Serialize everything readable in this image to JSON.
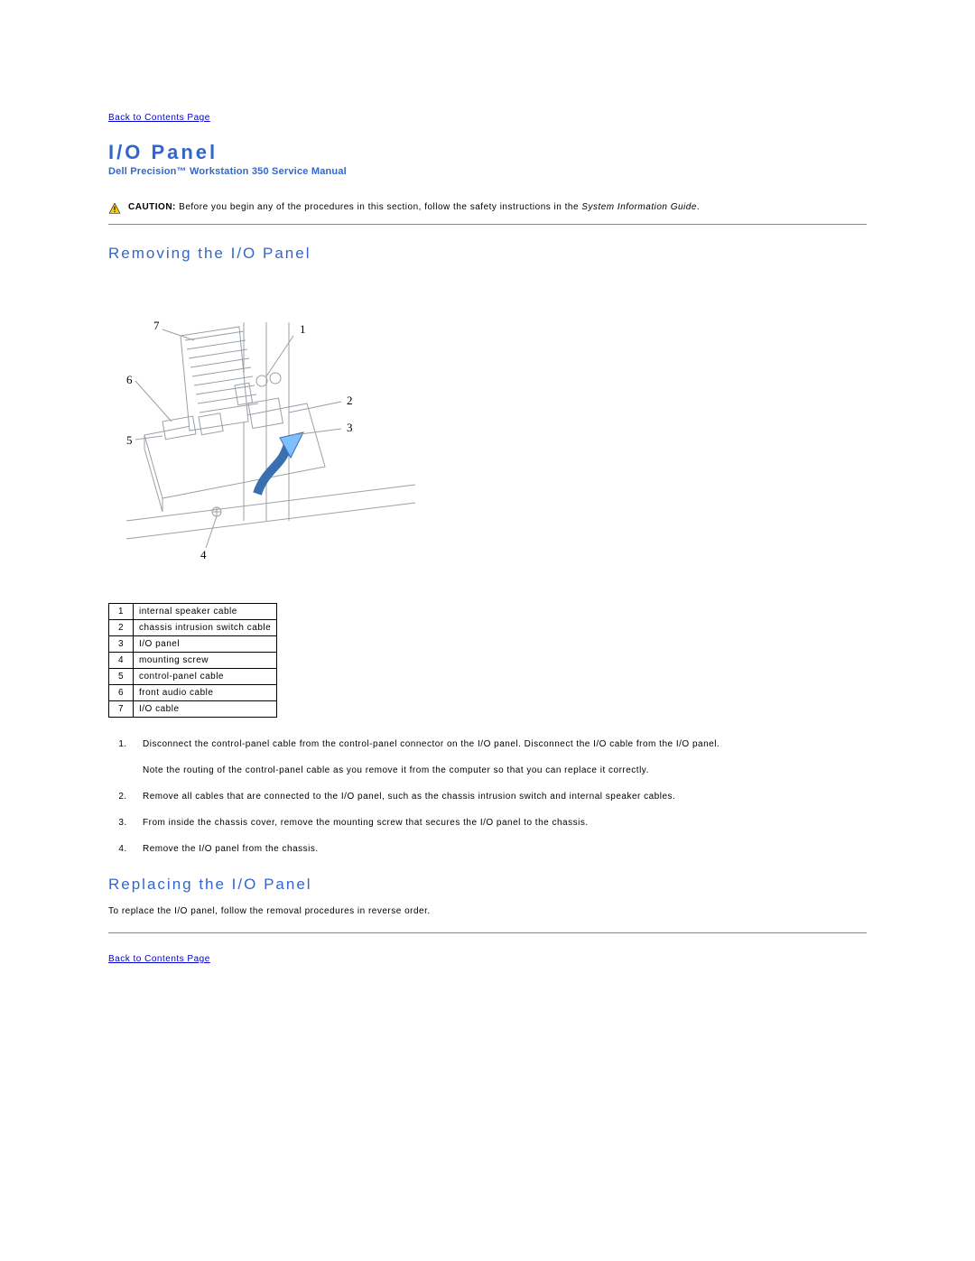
{
  "nav": {
    "back_link_top": "Back to Contents Page",
    "back_link_bottom": "Back to Contents Page"
  },
  "header": {
    "title": "I/O Panel",
    "subtitle": "Dell Precision™ Workstation 350 Service Manual"
  },
  "caution": {
    "label": "CAUTION:",
    "text_before": "Before you begin any of the procedures in this section, follow the safety instructions in the ",
    "doc_name": "System Information Guide",
    "text_after": "."
  },
  "sections": {
    "removing": "Removing the I/O Panel",
    "replacing": "Replacing the I/O Panel"
  },
  "diagram": {
    "callouts": [
      "1",
      "2",
      "3",
      "4",
      "5",
      "6",
      "7"
    ],
    "stroke": "#9aa0a6",
    "callout_font": "13px",
    "arrow_fill": "#7fbfff"
  },
  "parts_table": {
    "rows": [
      [
        "1",
        "internal speaker cable"
      ],
      [
        "2",
        "chassis intrusion switch cable"
      ],
      [
        "3",
        "I/O panel"
      ],
      [
        "4",
        "mounting screw"
      ],
      [
        "5",
        "control-panel cable"
      ],
      [
        "6",
        "front audio cable"
      ],
      [
        "7",
        "I/O cable"
      ]
    ]
  },
  "steps": [
    {
      "text": "Disconnect the control-panel cable from the control-panel connector on the I/O panel. Disconnect the I/O cable from the I/O panel.",
      "note": "Note the routing of the control-panel cable as you remove it from the computer so that you can replace it correctly."
    },
    {
      "text": "Remove all cables that are connected to the I/O panel, such as the chassis intrusion switch and internal speaker cables."
    },
    {
      "text": "From inside the chassis cover, remove the mounting screw that secures the I/O panel to the chassis."
    },
    {
      "text": "Remove the I/O panel from the chassis."
    }
  ],
  "replacing_text": "To replace the I/O panel, follow the removal procedures in reverse order.",
  "colors": {
    "heading": "#3366cc",
    "link": "#0000cc",
    "rule": "#888888",
    "text": "#000000"
  }
}
